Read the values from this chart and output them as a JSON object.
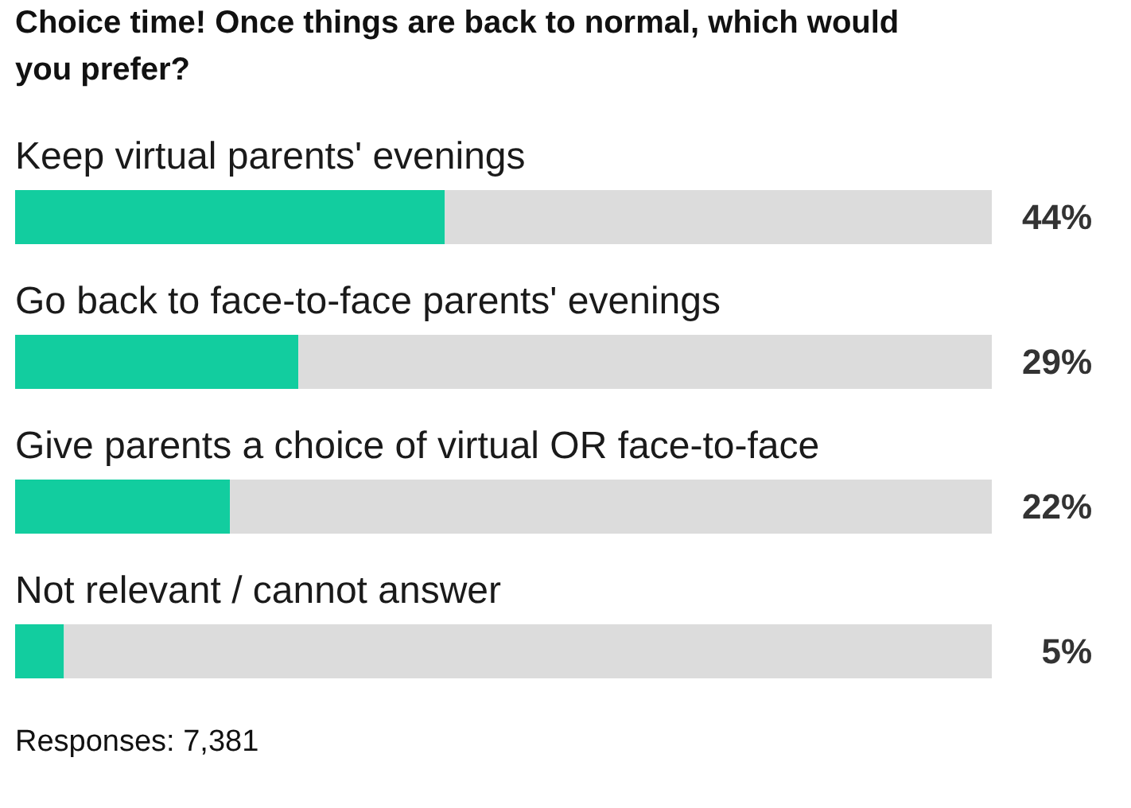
{
  "chart_data": {
    "type": "bar",
    "orientation": "horizontal",
    "stacked": true,
    "title": "Choice time! Once things are back to normal, which would you prefer?",
    "categories": [
      "Keep virtual parents' evenings",
      "Go back to face-to-face parents' evenings",
      "Give parents a choice of virtual OR face-to-face",
      "Not relevant / cannot answer"
    ],
    "series": [
      {
        "color": "#12cd9f",
        "values": [
          44,
          29,
          22,
          5
        ],
        "value_labels": [
          "44%",
          "29%",
          "22%",
          "5%"
        ]
      },
      {
        "color": "#dcdcdc",
        "values": [
          56,
          71,
          78,
          95
        ]
      }
    ],
    "tick_labels": "y",
    "annotations": [
      "Responses: 7,381"
    ]
  }
}
